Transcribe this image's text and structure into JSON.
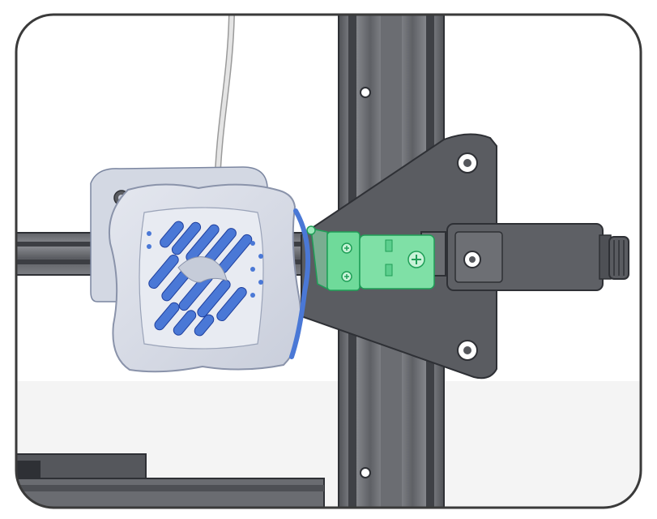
{
  "image": {
    "kind": "3d-printer-assembly-illustration",
    "description_hidden": "",
    "colors": {
      "frame_border": "#3a3a3a",
      "background": "#ffffff",
      "aluminum_dark": "#5f6166",
      "aluminum_mid": "#7a7c81",
      "aluminum_light": "#9a9ca1",
      "plate": "#55575c",
      "fan_shroud": "#d7dbe6",
      "fan_blue": "#4a78d6",
      "highlight_green": "#58d38a",
      "highlight_green_dark": "#1f9e57",
      "cable": "#d9d9d9"
    },
    "icons": [
      "rounded-frame",
      "printhead-fan-shroud",
      "vertical-extrusion",
      "horizontal-extrusion",
      "x-carriage-plate",
      "highlighted-bracket",
      "belt-tensioner",
      "adjustment-knob",
      "bed-rail"
    ]
  }
}
